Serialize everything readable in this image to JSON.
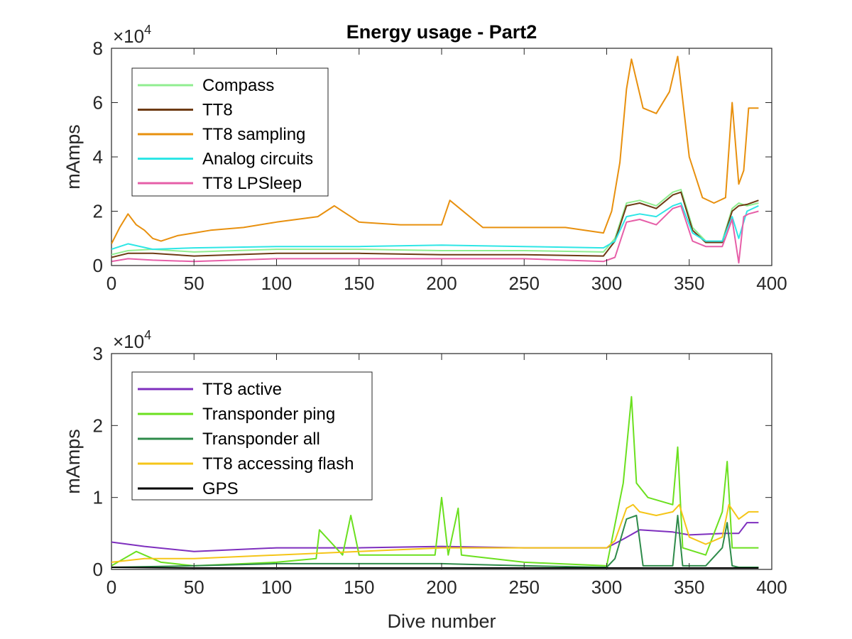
{
  "chart_data": [
    {
      "type": "line",
      "title": "Energy usage - Part2",
      "xlabel": "",
      "ylabel": "mAmps",
      "xlim": [
        0,
        400
      ],
      "ylim": [
        0,
        80000
      ],
      "y_exponent_label": "×10",
      "y_exponent_power": "4",
      "x_ticks": [
        "0",
        "50",
        "100",
        "150",
        "200",
        "250",
        "300",
        "350",
        "400"
      ],
      "y_ticks": [
        "0",
        "2",
        "4",
        "6",
        "8"
      ],
      "legend_position": "top-left",
      "grid": false,
      "series": [
        {
          "name": "Compass",
          "color": "#90ee90",
          "x": [
            0,
            10,
            25,
            50,
            100,
            150,
            200,
            250,
            298,
            305,
            312,
            320,
            330,
            340,
            345,
            352,
            360,
            370,
            376,
            380,
            385,
            392
          ],
          "y": [
            4000,
            5500,
            6000,
            5000,
            6000,
            6000,
            5500,
            5500,
            5000,
            10000,
            23000,
            24000,
            22000,
            27000,
            28000,
            14000,
            9000,
            9000,
            21000,
            23000,
            22000,
            23000
          ]
        },
        {
          "name": "TT8",
          "color": "#6e3b14",
          "x": [
            0,
            10,
            25,
            50,
            100,
            150,
            200,
            250,
            298,
            305,
            312,
            320,
            330,
            340,
            345,
            352,
            360,
            370,
            376,
            380,
            385,
            392
          ],
          "y": [
            3000,
            4500,
            4500,
            3500,
            4500,
            4500,
            4000,
            4000,
            3500,
            9000,
            22000,
            23000,
            21000,
            26000,
            27000,
            13000,
            8500,
            8500,
            20000,
            22000,
            22500,
            24000
          ]
        },
        {
          "name": "TT8 sampling",
          "color": "#e8900e",
          "x": [
            0,
            5,
            10,
            15,
            20,
            25,
            30,
            40,
            50,
            60,
            80,
            100,
            125,
            135,
            150,
            175,
            200,
            205,
            225,
            250,
            275,
            298,
            303,
            308,
            312,
            315,
            322,
            330,
            338,
            343,
            350,
            358,
            365,
            372,
            376,
            380,
            383,
            386,
            392
          ],
          "y": [
            8000,
            14000,
            19000,
            15000,
            13000,
            10000,
            9000,
            11000,
            12000,
            13000,
            14000,
            16000,
            18000,
            22000,
            16000,
            15000,
            15000,
            24000,
            14000,
            14000,
            14000,
            12000,
            20000,
            38000,
            65000,
            76000,
            58000,
            56000,
            64000,
            77000,
            40000,
            25000,
            23000,
            25000,
            60000,
            30000,
            35000,
            58000,
            58000
          ]
        },
        {
          "name": "Analog circuits",
          "color": "#2ee6e6",
          "x": [
            0,
            10,
            25,
            50,
            100,
            150,
            200,
            250,
            298,
            305,
            312,
            320,
            330,
            340,
            345,
            352,
            360,
            370,
            376,
            380,
            385,
            392
          ],
          "y": [
            6000,
            8000,
            6000,
            6500,
            7000,
            7000,
            7500,
            7000,
            6500,
            9000,
            18000,
            19000,
            18000,
            22000,
            23000,
            12000,
            9000,
            9000,
            18000,
            10000,
            20000,
            22000
          ]
        },
        {
          "name": "TT8 LPSleep",
          "color": "#e65fa8",
          "x": [
            0,
            10,
            25,
            50,
            100,
            150,
            200,
            250,
            298,
            305,
            312,
            320,
            330,
            340,
            345,
            352,
            360,
            370,
            376,
            380,
            383,
            386,
            392
          ],
          "y": [
            1500,
            2500,
            2000,
            1500,
            2500,
            2500,
            2500,
            2500,
            1500,
            3000,
            16000,
            17000,
            15000,
            21000,
            22000,
            9000,
            7000,
            7000,
            17000,
            1000,
            18000,
            19000,
            20000
          ]
        }
      ]
    },
    {
      "type": "line",
      "title": "",
      "xlabel": "Dive number",
      "ylabel": "mAmps",
      "xlim": [
        0,
        400
      ],
      "ylim": [
        0,
        30000
      ],
      "y_exponent_label": "×10",
      "y_exponent_power": "4",
      "x_ticks": [
        "0",
        "50",
        "100",
        "150",
        "200",
        "250",
        "300",
        "350",
        "400"
      ],
      "y_ticks": [
        "0",
        "1",
        "2",
        "3"
      ],
      "legend_position": "top-left",
      "grid": false,
      "series": [
        {
          "name": "TT8 active",
          "color": "#7e2fbe",
          "x": [
            0,
            20,
            50,
            100,
            150,
            200,
            250,
            300,
            310,
            320,
            340,
            350,
            370,
            380,
            385,
            392
          ],
          "y": [
            3800,
            3200,
            2500,
            3000,
            3000,
            3200,
            3000,
            3000,
            4200,
            5500,
            5200,
            4800,
            5000,
            5000,
            6500,
            6500
          ]
        },
        {
          "name": "Transponder ping",
          "color": "#6be01f",
          "x": [
            0,
            15,
            30,
            50,
            100,
            124,
            126,
            140,
            145,
            150,
            170,
            196,
            200,
            204,
            210,
            212,
            250,
            300,
            310,
            315,
            318,
            325,
            340,
            343,
            346,
            360,
            370,
            373,
            376,
            385,
            392
          ],
          "y": [
            500,
            2500,
            1000,
            500,
            1000,
            1500,
            5500,
            2000,
            7500,
            2000,
            2000,
            2000,
            10000,
            2000,
            8500,
            2000,
            1000,
            500,
            12000,
            24000,
            12000,
            10000,
            9000,
            17000,
            3000,
            2000,
            8000,
            15000,
            3000,
            3000,
            3000
          ]
        },
        {
          "name": "Transponder all",
          "color": "#2e8b4a",
          "x": [
            0,
            50,
            100,
            150,
            200,
            250,
            300,
            305,
            312,
            318,
            322,
            325,
            340,
            343,
            346,
            360,
            370,
            373,
            376,
            380,
            392
          ],
          "y": [
            300,
            500,
            800,
            800,
            800,
            500,
            300,
            1500,
            7000,
            7500,
            500,
            500,
            500,
            7500,
            500,
            500,
            3000,
            6500,
            500,
            300,
            300
          ]
        },
        {
          "name": "TT8 accessing flash",
          "color": "#f5c518",
          "x": [
            0,
            20,
            50,
            100,
            150,
            200,
            250,
            300,
            305,
            312,
            316,
            320,
            330,
            340,
            344,
            350,
            360,
            370,
            374,
            380,
            386,
            392
          ],
          "y": [
            1000,
            1500,
            1500,
            2000,
            2500,
            3000,
            3000,
            3000,
            4000,
            8500,
            9000,
            8000,
            7500,
            8000,
            9000,
            4500,
            3500,
            4500,
            9000,
            7000,
            8000,
            8000
          ]
        },
        {
          "name": "GPS",
          "color": "#000000",
          "x": [
            0,
            50,
            100,
            150,
            200,
            250,
            300,
            350,
            392
          ],
          "y": [
            300,
            200,
            200,
            200,
            200,
            200,
            200,
            200,
            200
          ]
        }
      ]
    }
  ]
}
